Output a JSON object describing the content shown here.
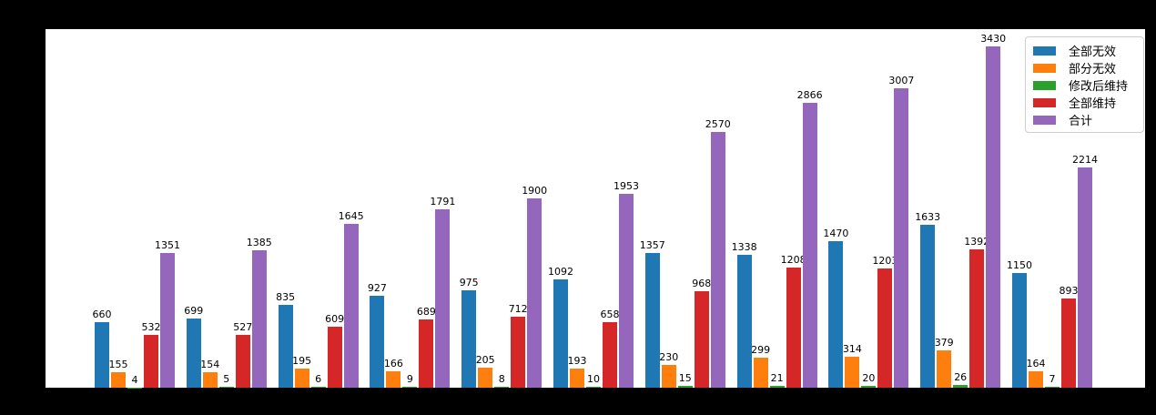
{
  "figure": {
    "background_color": "#000000",
    "plot_background_color": "#ffffff",
    "axis_line_color": "#000000"
  },
  "legend": {
    "position": "upper right",
    "items": [
      {
        "label": "全部无效",
        "color": "#1f77b4"
      },
      {
        "label": "部分无效",
        "color": "#ff7f0e"
      },
      {
        "label": "修改后维持",
        "color": "#2ca02c"
      },
      {
        "label": "全部维持",
        "color": "#d62728"
      },
      {
        "label": "合计",
        "color": "#9467bd"
      }
    ]
  },
  "chart_data": {
    "type": "bar",
    "title": "",
    "xlabel": "",
    "ylabel": "",
    "categories": [
      "",
      "",
      "",
      "",
      "",
      "",
      "",
      "",
      "",
      "",
      ""
    ],
    "series": [
      {
        "name": "全部无效",
        "color": "#1f77b4",
        "values": [
          660,
          699,
          835,
          927,
          975,
          1092,
          1357,
          1338,
          1470,
          1633,
          1150
        ]
      },
      {
        "name": "部分无效",
        "color": "#ff7f0e",
        "values": [
          155,
          154,
          195,
          166,
          205,
          193,
          230,
          299,
          314,
          379,
          164
        ]
      },
      {
        "name": "修改后维持",
        "color": "#2ca02c",
        "values": [
          4,
          5,
          6,
          9,
          8,
          10,
          15,
          21,
          20,
          26,
          7
        ]
      },
      {
        "name": "全部维持",
        "color": "#d62728",
        "values": [
          532,
          527,
          609,
          689,
          712,
          658,
          968,
          1208,
          1203,
          1392,
          893
        ]
      },
      {
        "name": "合计",
        "color": "#9467bd",
        "values": [
          1351,
          1385,
          1645,
          1791,
          1900,
          1953,
          2570,
          2866,
          3007,
          3430,
          2214
        ]
      }
    ],
    "ylim": [
      0,
      3600
    ],
    "grid": false,
    "bar_value_labels": true,
    "legend_position": "upper right",
    "x_tick_labels_visible": false,
    "y_tick_labels_visible": false
  }
}
